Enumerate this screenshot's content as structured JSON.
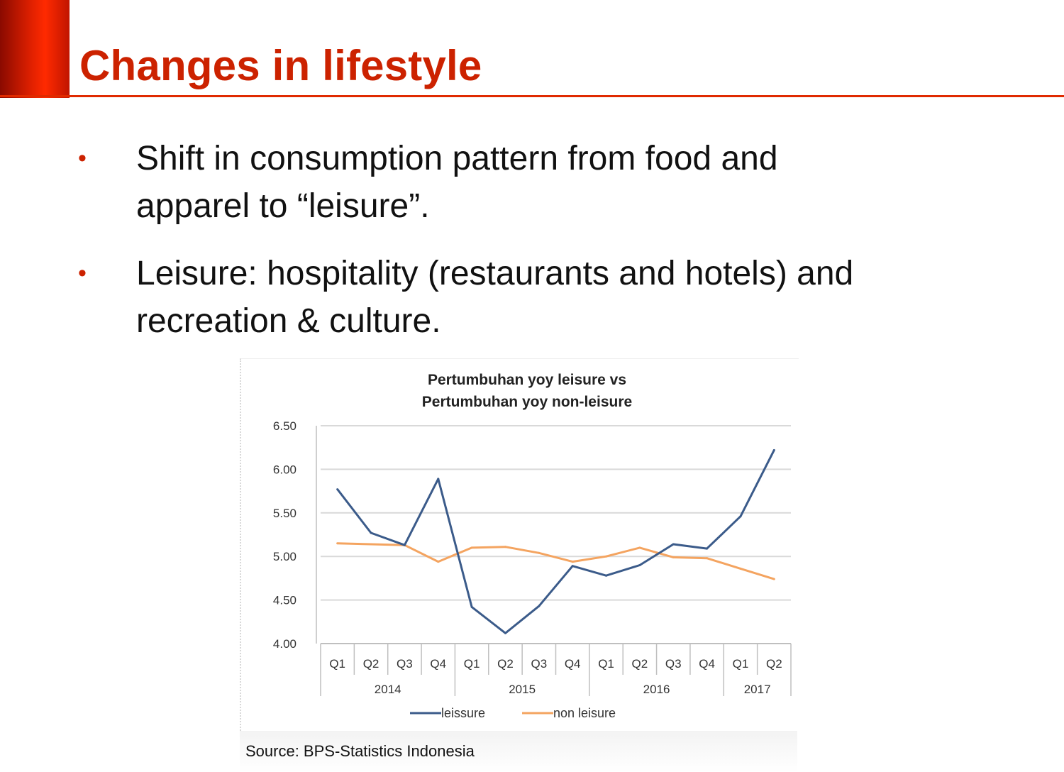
{
  "slide": {
    "title": "Changes in lifestyle",
    "bullets": [
      {
        "line1": "Shift in consumption pattern from food and",
        "line2": "apparel to “leisure”."
      },
      {
        "line1": "Leisure: hospitality (restaurants and hotels) and",
        "line2": "recreation & culture."
      }
    ],
    "bullet_symbol": "•",
    "source": "Source: BPS-Statistics Indonesia",
    "colors": {
      "accent": "#cc2200",
      "rule": "#e02a00"
    }
  },
  "chart_data": {
    "type": "line",
    "title_lines": [
      "Pertumbuhan yoy leisure vs",
      "Pertumbuhan yoy non-leisure"
    ],
    "categories": [
      "Q1",
      "Q2",
      "Q3",
      "Q4",
      "Q1",
      "Q2",
      "Q3",
      "Q4",
      "Q1",
      "Q2",
      "Q3",
      "Q4",
      "Q1",
      "Q2"
    ],
    "year_groups": [
      {
        "label": "2014",
        "quarters": 4
      },
      {
        "label": "2015",
        "quarters": 4
      },
      {
        "label": "2016",
        "quarters": 4
      },
      {
        "label": "2017",
        "quarters": 2
      }
    ],
    "ylim": [
      4.0,
      6.5
    ],
    "yticks": [
      "4.00",
      "4.50",
      "5.00",
      "5.50",
      "6.00",
      "6.50"
    ],
    "grid": true,
    "legend_position": "bottom",
    "series": [
      {
        "name": "leissure",
        "color": "#3b5b8a",
        "values": [
          5.77,
          5.27,
          5.13,
          5.89,
          4.42,
          4.12,
          4.43,
          4.89,
          4.78,
          4.9,
          5.14,
          5.09,
          5.46,
          6.22
        ]
      },
      {
        "name": "non leisure",
        "color": "#f4a460",
        "values": [
          5.15,
          5.14,
          5.13,
          4.94,
          5.1,
          5.11,
          5.04,
          4.94,
          5.0,
          5.1,
          4.99,
          4.98,
          4.86,
          4.74
        ]
      }
    ]
  }
}
